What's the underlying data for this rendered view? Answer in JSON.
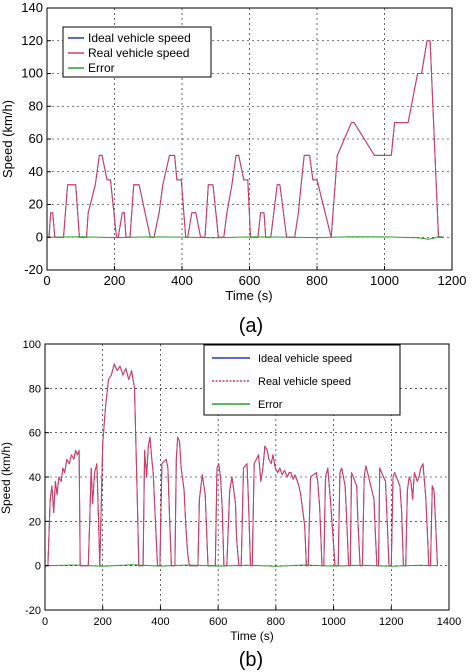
{
  "chart_data": [
    {
      "type": "line",
      "caption": "(a)",
      "xlabel": "Time (s)",
      "ylabel": "Speed (km/h)",
      "xlim": [
        0,
        1200
      ],
      "ylim": [
        -20,
        140
      ],
      "xticks": [
        0,
        200,
        400,
        600,
        800,
        1000,
        1200
      ],
      "yticks": [
        -20,
        0,
        20,
        40,
        60,
        80,
        100,
        120,
        140
      ],
      "grid": true,
      "legend_position": "top-left",
      "series": [
        {
          "name": "Ideal vehicle speed",
          "color": "#1f3fbf",
          "x": [
            0,
            6,
            11,
            17,
            23,
            49,
            61,
            85,
            96,
            117,
            122,
            143,
            155,
            163,
            178,
            188,
            206,
            211,
            223,
            229,
            234,
            246,
            257,
            273,
            306,
            317,
            332,
            343,
            363,
            378,
            385,
            398,
            411,
            417,
            429,
            441,
            455,
            468,
            478,
            492,
            508,
            524,
            533,
            548,
            560,
            568,
            583,
            595,
            603,
            625,
            633,
            643,
            648,
            663,
            682,
            690,
            710,
            734,
            745,
            753,
            762,
            778,
            788,
            800,
            842,
            860,
            902,
            910,
            970,
            980,
            1020,
            1030,
            1060,
            1070,
            1098,
            1105,
            1110,
            1126,
            1135,
            1160,
            1176
          ],
          "y": [
            0,
            0,
            15,
            15,
            0,
            0,
            32,
            32,
            0,
            0,
            15,
            32,
            50,
            50,
            35,
            35,
            0,
            0,
            15,
            15,
            0,
            0,
            32,
            32,
            0,
            0,
            15,
            32,
            50,
            50,
            35,
            35,
            0,
            0,
            15,
            15,
            0,
            0,
            32,
            32,
            0,
            0,
            15,
            32,
            50,
            50,
            35,
            35,
            0,
            0,
            15,
            15,
            0,
            0,
            32,
            32,
            0,
            0,
            15,
            32,
            50,
            50,
            35,
            35,
            0,
            50,
            70,
            70,
            50,
            50,
            50,
            70,
            70,
            70,
            100,
            100,
            100,
            120,
            120,
            0,
            0
          ]
        },
        {
          "name": "Real vehicle speed",
          "color": "#e03a5a",
          "x": [
            0,
            6,
            11,
            17,
            23,
            49,
            61,
            85,
            96,
            117,
            122,
            143,
            155,
            163,
            178,
            188,
            206,
            211,
            223,
            229,
            234,
            246,
            257,
            273,
            306,
            317,
            332,
            343,
            363,
            378,
            385,
            398,
            411,
            417,
            429,
            441,
            455,
            468,
            478,
            492,
            508,
            524,
            533,
            548,
            560,
            568,
            583,
            595,
            603,
            625,
            633,
            643,
            648,
            663,
            682,
            690,
            710,
            734,
            745,
            753,
            762,
            778,
            788,
            800,
            842,
            860,
            902,
            910,
            970,
            980,
            1020,
            1030,
            1060,
            1070,
            1098,
            1105,
            1110,
            1126,
            1135,
            1160,
            1176
          ],
          "y": [
            0,
            0,
            15,
            15,
            0,
            0,
            32,
            32,
            0,
            0,
            15,
            32,
            50,
            50,
            35,
            35,
            0,
            0,
            15,
            15,
            0,
            0,
            32,
            32,
            0,
            0,
            15,
            32,
            50,
            50,
            35,
            35,
            0,
            0,
            15,
            15,
            0,
            0,
            32,
            32,
            0,
            0,
            15,
            32,
            50,
            50,
            35,
            35,
            0,
            0,
            15,
            15,
            0,
            0,
            32,
            32,
            0,
            0,
            15,
            32,
            50,
            50,
            35,
            35,
            0,
            50,
            70,
            70,
            50,
            50,
            50,
            70,
            70,
            70,
            100,
            100,
            100,
            120,
            120,
            0,
            0
          ]
        },
        {
          "name": "Error",
          "color": "#2aa02a",
          "x": [
            0,
            100,
            200,
            300,
            400,
            500,
            600,
            700,
            800,
            900,
            1000,
            1100,
            1130,
            1150,
            1160,
            1176
          ],
          "y": [
            0,
            0.3,
            -0.2,
            0.2,
            0.1,
            -0.3,
            0.2,
            0.1,
            -0.2,
            0.3,
            0.2,
            -0.3,
            -1.2,
            -0.4,
            0.5,
            0
          ]
        }
      ]
    },
    {
      "type": "line",
      "caption": "(b)",
      "xlabel": "Time (s)",
      "ylabel": "Speed (km/h)",
      "xlim": [
        0,
        1400
      ],
      "ylim": [
        -20,
        100
      ],
      "xticks": [
        0,
        200,
        400,
        600,
        800,
        1000,
        1200,
        1400
      ],
      "yticks": [
        -20,
        0,
        20,
        40,
        60,
        80,
        100
      ],
      "grid": true,
      "legend_position": "top-right",
      "series": [
        {
          "name": "Ideal vehicle speed",
          "color": "#1f3fbf",
          "x": [
            0,
            10,
            18,
            24,
            30,
            36,
            42,
            48,
            56,
            62,
            68,
            76,
            84,
            92,
            100,
            106,
            112,
            118,
            122,
            150,
            155,
            160,
            165,
            172,
            180,
            190,
            200,
            210,
            220,
            230,
            240,
            250,
            260,
            270,
            280,
            290,
            300,
            310,
            320,
            325,
            340,
            345,
            352,
            358,
            364,
            370,
            375,
            382,
            390,
            398,
            405,
            420,
            426,
            432,
            438,
            450,
            455,
            460,
            466,
            472,
            482,
            488,
            494,
            500,
            530,
            535,
            545,
            555,
            565,
            570,
            590,
            596,
            602,
            608,
            614,
            620,
            630,
            640,
            648,
            660,
            664,
            672,
            680,
            688,
            700,
            705,
            712,
            718,
            725,
            740,
            748,
            755,
            762,
            770,
            776,
            784,
            790,
            798,
            806,
            814,
            822,
            830,
            840,
            846,
            852,
            860,
            866,
            872,
            880,
            886,
            892,
            900,
            906,
            912,
            920,
            940,
            945,
            952,
            960,
            966,
            972,
            980,
            990,
            1005,
            1010,
            1016,
            1022,
            1028,
            1040,
            1045,
            1052,
            1058,
            1062,
            1080,
            1085,
            1092,
            1100,
            1106,
            1112,
            1118,
            1140,
            1145,
            1150,
            1156,
            1160,
            1180,
            1185,
            1192,
            1200,
            1206,
            1212,
            1230,
            1236,
            1242,
            1250,
            1256,
            1262,
            1268,
            1274,
            1280,
            1290,
            1296,
            1302,
            1310,
            1320,
            1330,
            1336,
            1342,
            1348,
            1354,
            1360
          ],
          "y": [
            0,
            0,
            30,
            36,
            24,
            38,
            32,
            40,
            38,
            44,
            42,
            48,
            46,
            50,
            48,
            52,
            50,
            52,
            0,
            0,
            20,
            44,
            28,
            42,
            46,
            0,
            55,
            72,
            84,
            86,
            91,
            88,
            90,
            86,
            89,
            84,
            88,
            80,
            30,
            0,
            0,
            52,
            40,
            54,
            58,
            48,
            42,
            22,
            0,
            0,
            46,
            48,
            44,
            20,
            0,
            0,
            48,
            58,
            56,
            44,
            34,
            18,
            6,
            0,
            0,
            30,
            41,
            32,
            0,
            0,
            0,
            44,
            46,
            40,
            26,
            0,
            0,
            34,
            40,
            28,
            12,
            0,
            0,
            44,
            46,
            30,
            0,
            0,
            46,
            50,
            38,
            44,
            54,
            52,
            48,
            46,
            50,
            44,
            42,
            44,
            41,
            43,
            40,
            42,
            42,
            39,
            41,
            39,
            36,
            32,
            26,
            18,
            0,
            0,
            40,
            42,
            38,
            26,
            0,
            0,
            40,
            44,
            28,
            0,
            0,
            0,
            42,
            44,
            36,
            22,
            0,
            0,
            42,
            36,
            18,
            0,
            0,
            40,
            45,
            42,
            30,
            14,
            0,
            0,
            44,
            38,
            22,
            0,
            0,
            40,
            42,
            36,
            24,
            0,
            0,
            34,
            40,
            38,
            30,
            42,
            38,
            40,
            44,
            46,
            30,
            0,
            0,
            36,
            34,
            18,
            0
          ]
        },
        {
          "name": "Real vehicle speed",
          "color": "#e03a5a",
          "x": [
            0,
            10,
            18,
            24,
            30,
            36,
            42,
            48,
            56,
            62,
            68,
            76,
            84,
            92,
            100,
            106,
            112,
            118,
            122,
            150,
            155,
            160,
            165,
            172,
            180,
            190,
            200,
            210,
            220,
            230,
            240,
            250,
            260,
            270,
            280,
            290,
            300,
            310,
            320,
            325,
            340,
            345,
            352,
            358,
            364,
            370,
            375,
            382,
            390,
            398,
            405,
            420,
            426,
            432,
            438,
            450,
            455,
            460,
            466,
            472,
            482,
            488,
            494,
            500,
            530,
            535,
            545,
            555,
            565,
            570,
            590,
            596,
            602,
            608,
            614,
            620,
            630,
            640,
            648,
            660,
            664,
            672,
            680,
            688,
            700,
            705,
            712,
            718,
            725,
            740,
            748,
            755,
            762,
            770,
            776,
            784,
            790,
            798,
            806,
            814,
            822,
            830,
            840,
            846,
            852,
            860,
            866,
            872,
            880,
            886,
            892,
            900,
            906,
            912,
            920,
            940,
            945,
            952,
            960,
            966,
            972,
            980,
            990,
            1005,
            1010,
            1016,
            1022,
            1028,
            1040,
            1045,
            1052,
            1058,
            1062,
            1080,
            1085,
            1092,
            1100,
            1106,
            1112,
            1118,
            1140,
            1145,
            1150,
            1156,
            1160,
            1180,
            1185,
            1192,
            1200,
            1206,
            1212,
            1230,
            1236,
            1242,
            1250,
            1256,
            1262,
            1268,
            1274,
            1280,
            1290,
            1296,
            1302,
            1310,
            1320,
            1330,
            1336,
            1342,
            1348,
            1354,
            1360
          ],
          "y": [
            0,
            0,
            30,
            36,
            24,
            38,
            32,
            40,
            38,
            44,
            42,
            48,
            46,
            50,
            48,
            52,
            50,
            52,
            0,
            0,
            20,
            44,
            28,
            42,
            46,
            0,
            55,
            72,
            84,
            86,
            91,
            88,
            90,
            86,
            89,
            84,
            88,
            80,
            30,
            0,
            0,
            52,
            40,
            54,
            58,
            48,
            42,
            22,
            0,
            0,
            46,
            48,
            44,
            20,
            0,
            0,
            48,
            58,
            56,
            44,
            34,
            18,
            6,
            0,
            0,
            30,
            41,
            32,
            0,
            0,
            0,
            44,
            46,
            40,
            26,
            0,
            0,
            34,
            40,
            28,
            12,
            0,
            0,
            44,
            46,
            30,
            0,
            0,
            46,
            50,
            38,
            44,
            54,
            52,
            48,
            46,
            50,
            44,
            42,
            44,
            41,
            43,
            40,
            42,
            42,
            39,
            41,
            39,
            36,
            32,
            26,
            18,
            0,
            0,
            40,
            42,
            38,
            26,
            0,
            0,
            40,
            44,
            28,
            0,
            0,
            0,
            42,
            44,
            36,
            22,
            0,
            0,
            42,
            36,
            18,
            0,
            0,
            40,
            45,
            42,
            30,
            14,
            0,
            0,
            44,
            38,
            22,
            0,
            0,
            40,
            42,
            36,
            24,
            0,
            0,
            34,
            40,
            38,
            30,
            42,
            38,
            40,
            44,
            46,
            30,
            0,
            0,
            36,
            34,
            18,
            0
          ]
        },
        {
          "name": "Error",
          "color": "#2aa02a",
          "x": [
            0,
            100,
            200,
            300,
            400,
            500,
            600,
            700,
            800,
            900,
            1000,
            1100,
            1200,
            1300,
            1360
          ],
          "y": [
            0,
            0.3,
            -0.3,
            0.4,
            -0.2,
            0.3,
            -0.2,
            0.2,
            -0.3,
            0.3,
            -0.2,
            0.2,
            -0.3,
            0.2,
            0
          ]
        }
      ]
    }
  ]
}
